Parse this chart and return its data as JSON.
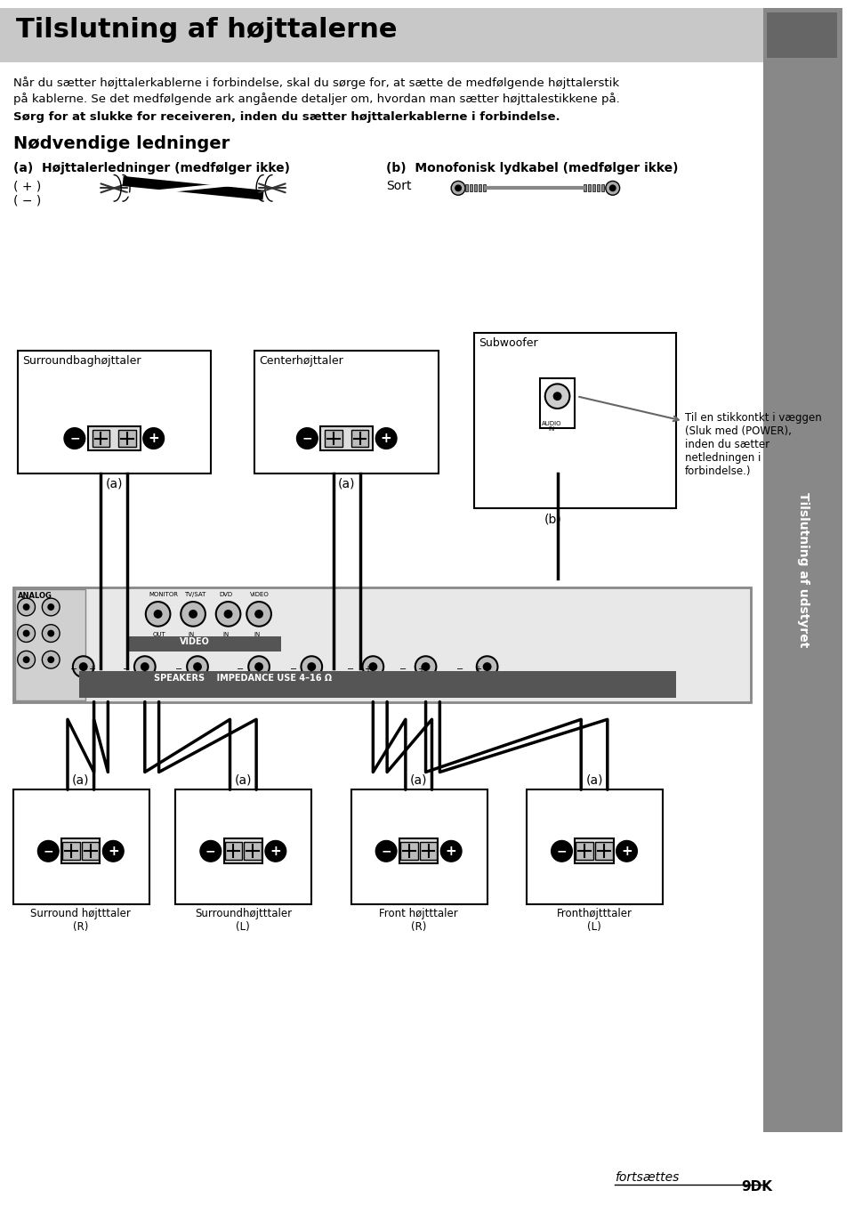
{
  "title": "Tilslutning af højttalerne",
  "sidebar_text": "Tilslutning af udstyret",
  "intro_text1": "Når du sætter højttalerkablerne i forbindelse, skal du sørge for, at sætte de medfølgende højttalerstik",
  "intro_text2": "på kablerne. Se det medfølgende ark angående detaljer om, hvordan man sætter højttalestikkene på.",
  "intro_text3": "Sørg for at slukke for receiveren, inden du sætter højttalerkablerne i forbindelse.",
  "section_title": "Nødvendige ledninger",
  "label_a": "(a)  Højttalerledninger (medfølger ikke)",
  "label_b": "(b)  Monofonisk lydkabel (medfølger ikke)",
  "plus_label": "( + )",
  "minus_label": "( − )",
  "sort_label": "Sort",
  "subwoofer_label": "Subwoofer",
  "surround_label": "Surroundbaghøjttaler",
  "center_label": "Centerhøjttaler",
  "label_a_tag": "(a)",
  "label_b_tag": "(b)",
  "subwoofer_note": "Til en stikkontkt i væggen\n(Sluk med (POWER),\ninden du sætter\nnetledningen i\nforbindelse.)",
  "audio_in_label": "AUDIO IN",
  "speaker_labels": [
    "Surround højtttaler\n(R)",
    "Surroundhøjtttaler\n(L)",
    "Front højtttaler\n(R)",
    "Fronthøjtttaler\n(L)"
  ],
  "speaker_a_labels": [
    "(a)",
    "(a)",
    "(a)",
    "(a)"
  ],
  "fortsaettes": "fortsættes",
  "page_num": "9",
  "bg_color": "#ffffff",
  "header_bg": "#c8c8c8",
  "header_text_color": "#000000",
  "sidebar_bg": "#555555",
  "body_text_color": "#000000"
}
